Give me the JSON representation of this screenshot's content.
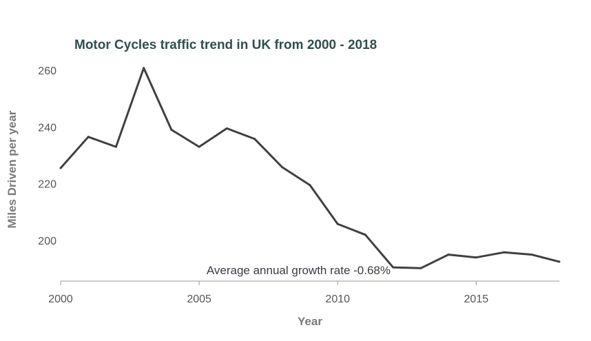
{
  "chart_data": {
    "type": "line",
    "title": "Motor Cycles traffic trend in UK from 2000 - 2018",
    "xlabel": "Year",
    "ylabel": "Miles Driven per year",
    "annotation": "Average annual growth rate -0.68%",
    "x": [
      2000,
      2001,
      2002,
      2003,
      2004,
      2005,
      2006,
      2007,
      2008,
      2009,
      2010,
      2011,
      2012,
      2013,
      2014,
      2015,
      2016,
      2017,
      2018
    ],
    "series": [
      {
        "values": [
          225.5,
          236.5,
          233,
          260.8,
          239,
          233,
          239.5,
          235.8,
          225.8,
          219.5,
          205.8,
          202,
          190.5,
          190.2,
          195,
          194,
          195.8,
          195,
          192.5
        ]
      }
    ],
    "xlim": [
      2000,
      2018
    ],
    "ylim": [
      186,
      265
    ],
    "xticks": [
      "2000",
      "2005",
      "2010",
      "2015"
    ],
    "yticks": [
      "200",
      "220",
      "240",
      "260"
    ],
    "grid": false,
    "line_color": "#404040",
    "axis_color": "#999999"
  }
}
